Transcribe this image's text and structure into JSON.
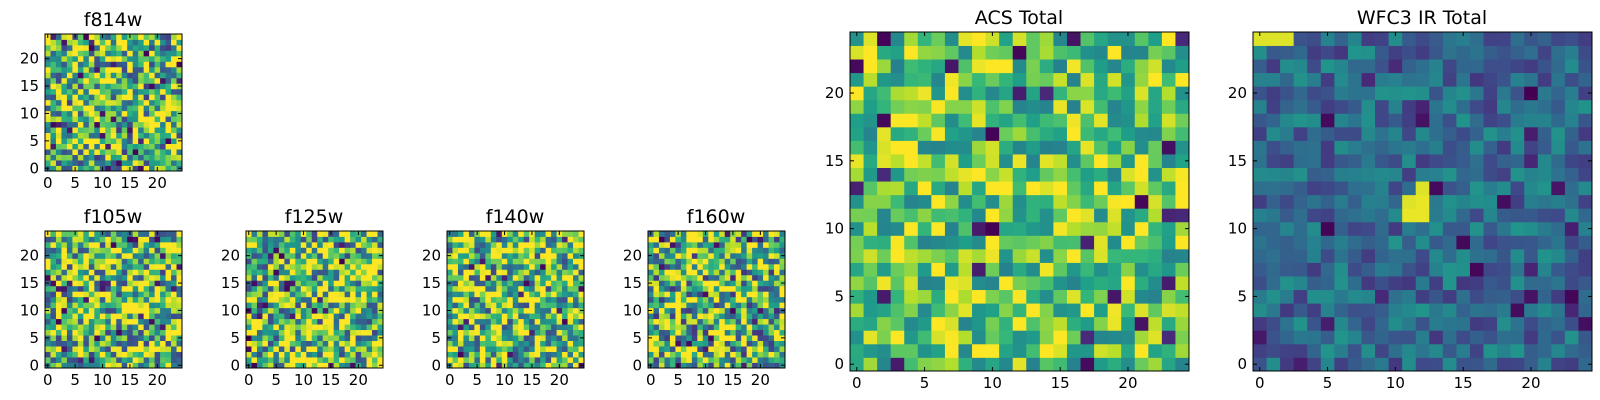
{
  "chart_data": [
    {
      "type": "heatmap",
      "id": "f814w",
      "title": "f814w",
      "grid": [
        25,
        25
      ],
      "xlim": [
        -0.5,
        24.5
      ],
      "ylim": [
        -0.5,
        24.5
      ],
      "xticks": [
        0,
        5,
        10,
        15,
        20
      ],
      "yticks": [
        0,
        5,
        10,
        15,
        20
      ],
      "colormap": "viridis",
      "seed": 11,
      "mean": 0.68,
      "spread": 0.5
    },
    {
      "type": "heatmap",
      "id": "f105w",
      "title": "f105w",
      "grid": [
        25,
        25
      ],
      "xlim": [
        -0.5,
        24.5
      ],
      "ylim": [
        -0.5,
        24.5
      ],
      "xticks": [
        0,
        5,
        10,
        15,
        20
      ],
      "yticks": [
        0,
        5,
        10,
        15,
        20
      ],
      "colormap": "viridis",
      "seed": 23,
      "mean": 0.7,
      "spread": 0.5
    },
    {
      "type": "heatmap",
      "id": "f125w",
      "title": "f125w",
      "grid": [
        25,
        25
      ],
      "xlim": [
        -0.5,
        24.5
      ],
      "ylim": [
        -0.5,
        24.5
      ],
      "xticks": [
        0,
        5,
        10,
        15,
        20
      ],
      "yticks": [
        0,
        5,
        10,
        15,
        20
      ],
      "colormap": "viridis",
      "seed": 37,
      "mean": 0.7,
      "spread": 0.5
    },
    {
      "type": "heatmap",
      "id": "f140w",
      "title": "f140w",
      "grid": [
        25,
        25
      ],
      "xlim": [
        -0.5,
        24.5
      ],
      "ylim": [
        -0.5,
        24.5
      ],
      "xticks": [
        0,
        5,
        10,
        15,
        20
      ],
      "yticks": [
        0,
        5,
        10,
        15,
        20
      ],
      "colormap": "viridis",
      "seed": 41,
      "mean": 0.72,
      "spread": 0.5
    },
    {
      "type": "heatmap",
      "id": "f160w",
      "title": "f160w",
      "grid": [
        25,
        25
      ],
      "xlim": [
        -0.5,
        24.5
      ],
      "ylim": [
        -0.5,
        24.5
      ],
      "xticks": [
        0,
        5,
        10,
        15,
        20
      ],
      "yticks": [
        0,
        5,
        10,
        15,
        20
      ],
      "colormap": "viridis",
      "seed": 53,
      "mean": 0.7,
      "spread": 0.55
    },
    {
      "type": "heatmap",
      "id": "acs-total",
      "title": "ACS Total",
      "grid": [
        25,
        25
      ],
      "xlim": [
        -0.5,
        24.5
      ],
      "ylim": [
        -0.5,
        24.5
      ],
      "xticks": [
        0,
        5,
        10,
        15,
        20
      ],
      "yticks": [
        0,
        5,
        10,
        15,
        20
      ],
      "colormap": "viridis",
      "seed": 67,
      "mean": 0.74,
      "spread": 0.3
    },
    {
      "type": "heatmap",
      "id": "wfc3-ir-total",
      "title": "WFC3 IR Total",
      "grid": [
        25,
        25
      ],
      "xlim": [
        -0.5,
        24.5
      ],
      "ylim": [
        -0.5,
        24.5
      ],
      "xticks": [
        0,
        5,
        10,
        15,
        20
      ],
      "yticks": [
        0,
        5,
        10,
        15,
        20
      ],
      "colormap": "viridis",
      "seed": 79,
      "mean": 0.34,
      "spread": 0.18,
      "highlights": [
        {
          "x": 11,
          "y": 11,
          "v": 0.97
        },
        {
          "x": 11,
          "y": 12,
          "v": 0.95
        },
        {
          "x": 12,
          "y": 11,
          "v": 0.97
        },
        {
          "x": 12,
          "y": 12,
          "v": 0.97
        },
        {
          "x": 12,
          "y": 13,
          "v": 0.95
        },
        {
          "x": 0,
          "y": 24,
          "v": 0.95
        },
        {
          "x": 1,
          "y": 24,
          "v": 0.95
        },
        {
          "x": 2,
          "y": 24,
          "v": 0.95
        }
      ]
    }
  ]
}
